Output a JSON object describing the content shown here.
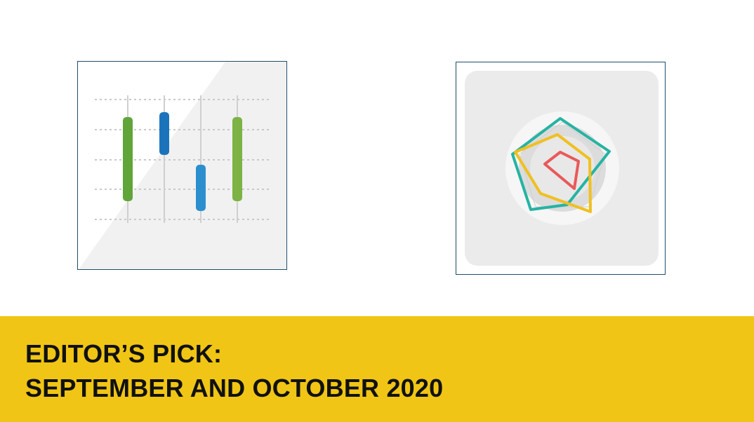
{
  "banner": {
    "line1": "EDITOR’S PICK:",
    "line2": "SEPTEMBER AND OCTOBER 2020"
  },
  "thumbnails": [
    {
      "icon": "candlestick-chart-icon"
    },
    {
      "icon": "radar-chart-icon"
    }
  ],
  "colors": {
    "banner": "#f0c515",
    "border": "#1f4e6b",
    "green": "#5fa53a",
    "light_green": "#7cb344",
    "blue": "#1b74bb",
    "light_blue": "#2b8fcf",
    "teal": "#26b3a3",
    "yellow": "#f0c020",
    "red": "#e9595b"
  }
}
